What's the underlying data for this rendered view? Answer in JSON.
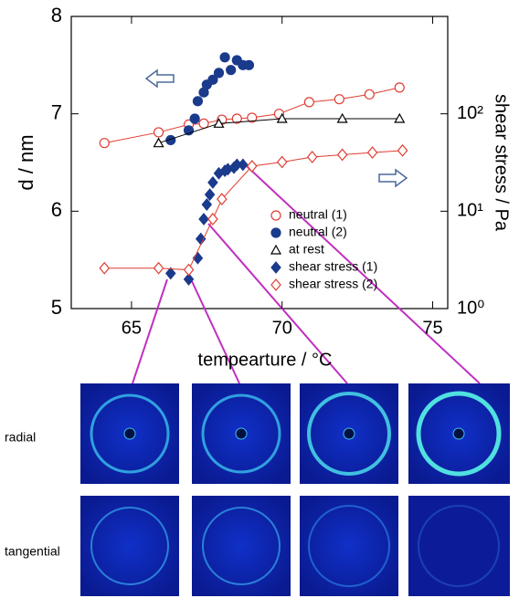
{
  "chart_data": {
    "type": "scatter",
    "xlabel": "tempearture / °C",
    "ylabel": "d / nm",
    "y2label": "shear stress / Pa",
    "xlim": [
      63,
      75.5
    ],
    "xticks": [
      65,
      70,
      75
    ],
    "ylim": [
      5,
      8
    ],
    "yticks": [
      5,
      6,
      7,
      8
    ],
    "y2lim": [
      1,
      1000
    ],
    "y2log": true,
    "y2ticks": [
      {
        "value": 1,
        "label": "10⁰"
      },
      {
        "value": 10,
        "label": "10¹"
      },
      {
        "value": 100,
        "label": "10²"
      }
    ],
    "series": [
      {
        "name": "neutral (1)",
        "color": "#e03c31",
        "marker": "circle-open",
        "line": true,
        "axis": "y",
        "x": [
          64.1,
          65.9,
          66.9,
          67.4,
          68.0,
          68.5,
          69.0,
          69.9,
          70.9,
          71.9,
          72.9,
          73.9
        ],
        "values": [
          6.7,
          6.81,
          6.89,
          6.9,
          6.94,
          6.95,
          6.96,
          7.0,
          7.12,
          7.15,
          7.2,
          7.27
        ]
      },
      {
        "name": "neutral (2)",
        "color": "#1a3a8c",
        "marker": "circle-filled",
        "line": false,
        "axis": "y",
        "x": [
          66.3,
          66.9,
          67.1,
          67.2,
          67.4,
          67.5,
          67.7,
          67.9,
          68.1,
          68.3,
          68.5,
          68.7,
          68.9
        ],
        "values": [
          6.73,
          6.83,
          6.95,
          7.13,
          7.22,
          7.3,
          7.35,
          7.42,
          7.58,
          7.45,
          7.55,
          7.5,
          7.5
        ]
      },
      {
        "name": "at rest",
        "color": "#000000",
        "marker": "triangle-open",
        "line": true,
        "axis": "y",
        "x": [
          65.9,
          67.9,
          70.0,
          72.0,
          73.9
        ],
        "values": [
          6.7,
          6.9,
          6.95,
          6.95,
          6.95
        ]
      },
      {
        "name": "shear stress (1)",
        "color": "#1a3a8c",
        "marker": "diamond-filled",
        "line": false,
        "axis": "y2",
        "x": [
          66.3,
          66.9,
          67.2,
          67.3,
          67.4,
          67.5,
          67.6,
          67.7,
          67.9,
          68.1,
          68.2,
          68.4,
          68.5,
          68.7
        ],
        "values": [
          2.3,
          2.0,
          3.3,
          5.2,
          8.3,
          11.7,
          14.8,
          19.7,
          24.5,
          26,
          27,
          28,
          30,
          30
        ]
      },
      {
        "name": "shear stress (2)",
        "color": "#e03c31",
        "marker": "diamond-open",
        "line": true,
        "axis": "y2",
        "x": [
          64.1,
          65.9,
          66.9,
          67.7,
          68.0,
          69.0,
          70.0,
          71.0,
          72.0,
          73.0,
          74.0
        ],
        "values": [
          2.6,
          2.6,
          2.5,
          8.3,
          13.3,
          29,
          32,
          36,
          38,
          40,
          42
        ]
      }
    ]
  },
  "panels": {
    "rows": [
      "radial",
      "tangential"
    ]
  }
}
